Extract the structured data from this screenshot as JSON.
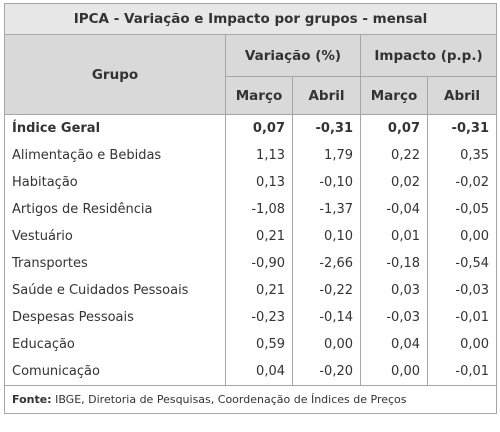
{
  "title": "IPCA - Variação e Impacto por grupos - mensal",
  "header": {
    "group": "Grupo",
    "variation": "Variação (%)",
    "impact": "Impacto (p.p.)",
    "subcolumns": [
      "Março",
      "Abril",
      "Março",
      "Abril"
    ]
  },
  "table": {
    "rows": [
      [
        "Índice Geral",
        "0,07",
        "-0,31",
        "0,07",
        "-0,31"
      ],
      [
        "Alimentação e Bebidas",
        "1,13",
        "1,79",
        "0,22",
        "0,35"
      ],
      [
        "Habitação",
        "0,13",
        "-0,10",
        "0,02",
        "-0,02"
      ],
      [
        "Artigos de Residência",
        "-1,08",
        "-1,37",
        "-0,04",
        "-0,05"
      ],
      [
        "Vestuário",
        "0,21",
        "0,10",
        "0,01",
        "0,00"
      ],
      [
        "Transportes",
        "-0,90",
        "-2,66",
        "-0,18",
        "-0,54"
      ],
      [
        "Saúde e Cuidados Pessoais",
        "0,21",
        "-0,22",
        "0,03",
        "-0,03"
      ],
      [
        "Despesas Pessoais",
        "-0,23",
        "-0,14",
        "-0,03",
        "-0,01"
      ],
      [
        "Educação",
        "0,59",
        "0,00",
        "0,04",
        "0,00"
      ],
      [
        "Comunicação",
        "0,04",
        "-0,20",
        "0,00",
        "-0,01"
      ]
    ]
  },
  "source": {
    "label": "Fonte:",
    "text": "IBGE, Diretoria de Pesquisas, Coordenação de Índices de Preços"
  }
}
